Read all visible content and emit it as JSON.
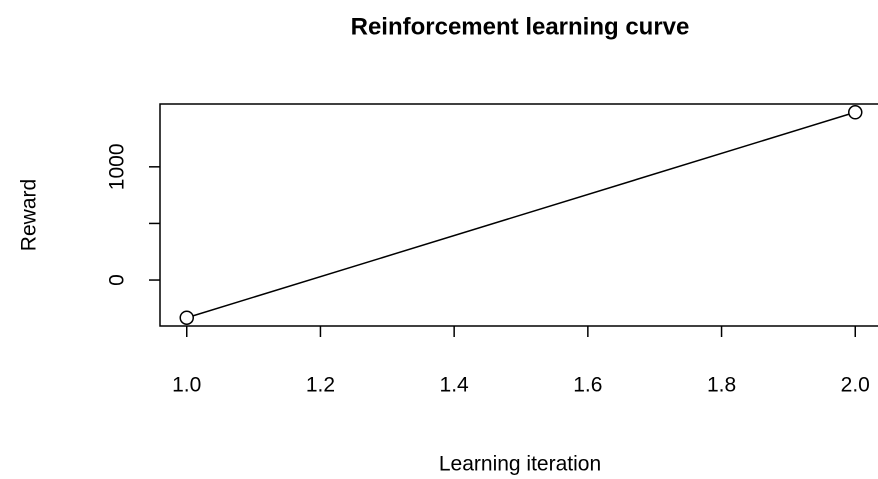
{
  "chart_data": {
    "type": "line",
    "title": "Reinforcement learning curve",
    "xlabel": "Learning iteration",
    "ylabel": "Reward",
    "x": [
      1,
      2
    ],
    "series": [
      {
        "name": "Reward",
        "color": "#000000",
        "values": [
          -333,
          1482
        ]
      }
    ],
    "xlim": [
      0.96,
      2.04
    ],
    "ylim": [
      -406,
      1555
    ],
    "xticks": [
      {
        "value": 1,
        "label": "1.0"
      },
      1.2,
      1.4,
      1.6,
      1.8,
      {
        "value": 2,
        "label": "2.0"
      }
    ],
    "yticks": [
      0,
      {
        "value": 500,
        "label": null
      },
      1000
    ],
    "markers": "open-circle"
  }
}
